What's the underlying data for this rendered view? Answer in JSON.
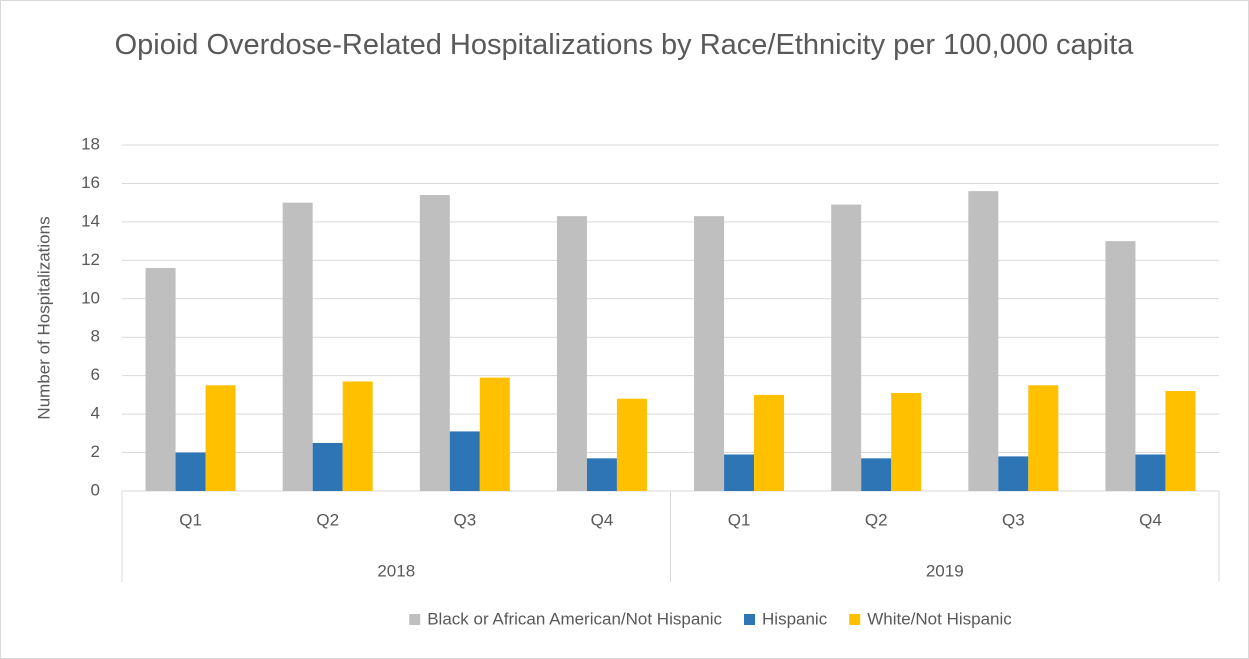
{
  "chart_data": {
    "type": "bar",
    "title": "Opioid Overdose-Related Hospitalizations by Race/Ethnicity per 100,000 capita",
    "y_label": "Number of Hospitalizations",
    "categories": [
      "Q1",
      "Q2",
      "Q3",
      "Q4",
      "Q1",
      "Q2",
      "Q3",
      "Q4"
    ],
    "groups": [
      "2018",
      "2019"
    ],
    "series": [
      {
        "name": "Black or African American/Not Hispanic",
        "color": "#bfbfbf",
        "values": [
          11.6,
          15.0,
          15.4,
          14.3,
          14.3,
          14.9,
          15.6,
          13.0
        ]
      },
      {
        "name": "Hispanic",
        "color": "#2e75b6",
        "values": [
          2.0,
          2.5,
          3.1,
          1.7,
          1.9,
          1.7,
          1.8,
          1.9
        ]
      },
      {
        "name": "White/Not Hispanic",
        "color": "#ffc000",
        "values": [
          5.5,
          5.7,
          5.9,
          4.8,
          5.0,
          5.1,
          5.5,
          5.2
        ]
      }
    ],
    "ylim": [
      0,
      18
    ],
    "yticks": [
      0,
      2,
      4,
      6,
      8,
      10,
      12,
      14,
      16,
      18
    ],
    "grid": true,
    "legend": "bottom"
  }
}
